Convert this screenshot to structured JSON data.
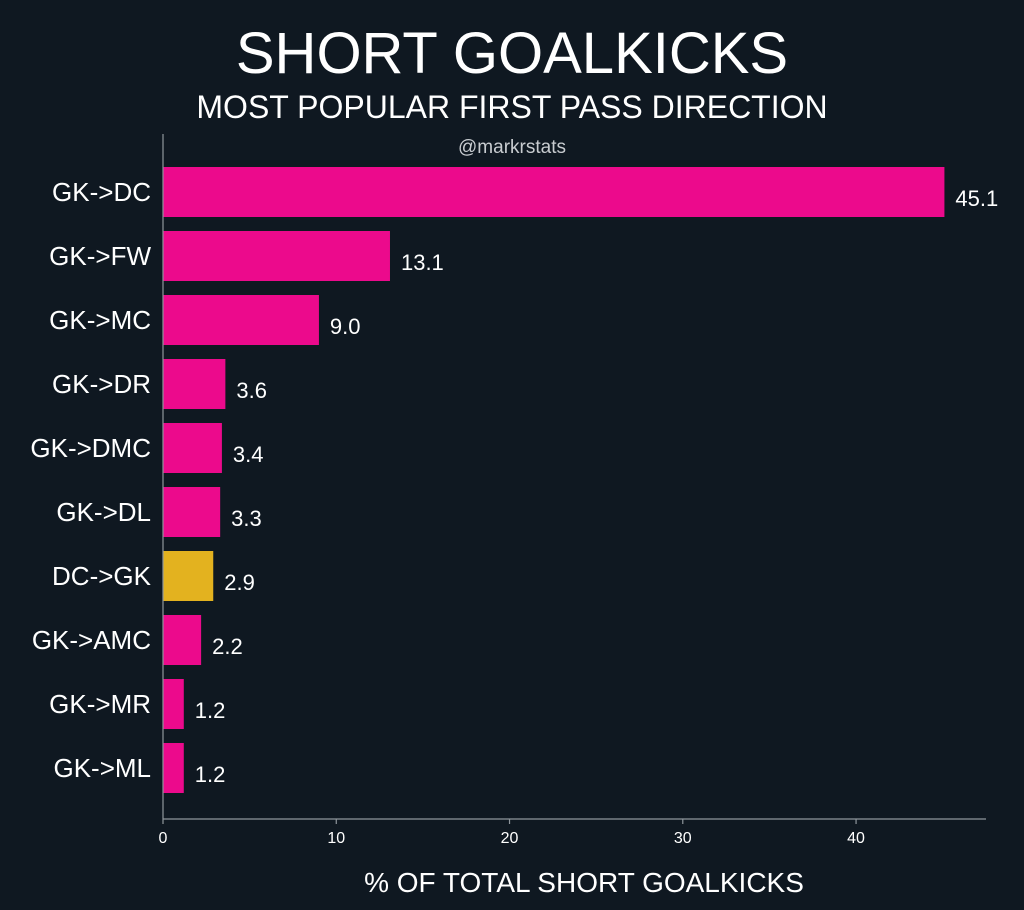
{
  "chart_data": {
    "type": "bar",
    "orientation": "horizontal",
    "title": "SHORT GOALKICKS",
    "subtitle": "MOST POPULAR FIRST PASS DIRECTION",
    "credit": "@markrstats",
    "xlabel": "% OF TOTAL SHORT GOALKICKS",
    "ylabel": "",
    "xlim": [
      0,
      47.5
    ],
    "xticks": [
      0,
      10,
      20,
      30,
      40
    ],
    "grid": false,
    "categories": [
      "GK->DC",
      "GK->FW",
      "GK->MC",
      "GK->DR",
      "GK->DMC",
      "GK->DL",
      "DC->GK",
      "GK->AMC",
      "GK->MR",
      "GK->ML"
    ],
    "values": [
      45.1,
      13.1,
      9.0,
      3.6,
      3.4,
      3.3,
      2.9,
      2.2,
      1.2,
      1.2
    ],
    "value_labels": [
      "45.1",
      "13.1",
      "9.0",
      "3.6",
      "3.4",
      "3.3",
      "2.9",
      "2.2",
      "1.2",
      "1.2"
    ],
    "highlight_category": "DC->GK"
  },
  "colors": {
    "background": "#0f1821",
    "bar": "#ec0a8c",
    "highlight": "#e3b21f",
    "text": "#ffffff",
    "axis": "#8f969c",
    "credit": "#c8ccd0"
  }
}
